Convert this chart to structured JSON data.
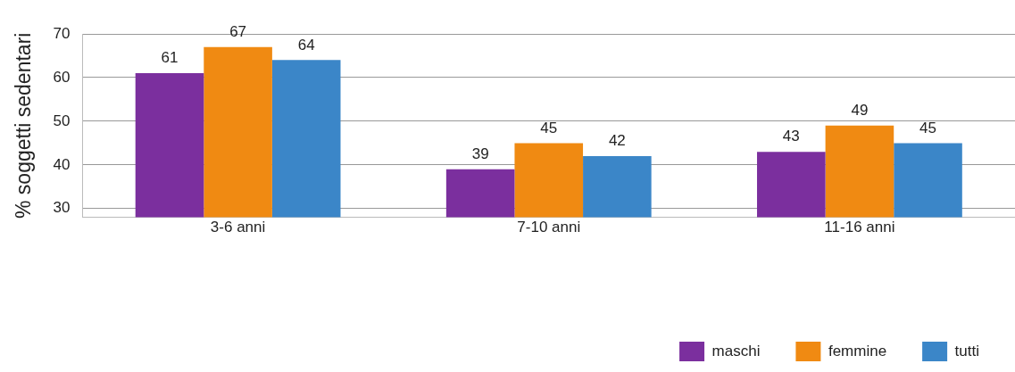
{
  "chart_data": {
    "type": "bar",
    "ylabel": "% soggetti sedentari",
    "categories": [
      "3-6 anni",
      "7-10 anni",
      "11-16 anni"
    ],
    "series": [
      {
        "name": "maschi",
        "color": "#7b2f9e",
        "values": [
          61,
          39,
          43
        ]
      },
      {
        "name": "femmine",
        "color": "#f08a12",
        "values": [
          67,
          45,
          49
        ]
      },
      {
        "name": "tutti",
        "color": "#3b86c8",
        "values": [
          64,
          42,
          45
        ]
      }
    ],
    "ylim": [
      28,
      70
    ],
    "yticks": [
      30,
      40,
      50,
      60,
      70
    ],
    "grid": "y",
    "legend": "bottom right",
    "data_labels": true
  }
}
